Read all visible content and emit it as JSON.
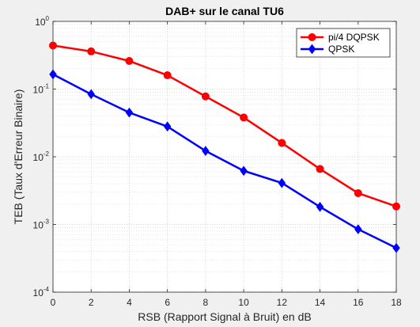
{
  "chart_data": {
    "type": "line",
    "title": "DAB+ sur le canal TU6",
    "xlabel": "RSB (Rapport Signal à Bruit) en dB",
    "ylabel": "TEB (Taux d'Erreur Binaire)",
    "xlim": [
      0,
      18
    ],
    "ylim": [
      0.0001,
      1
    ],
    "yscale": "log",
    "grid": true,
    "minor_grid": true,
    "legend_position": "top-right",
    "x": [
      0,
      2,
      4,
      6,
      8,
      10,
      12,
      14,
      16,
      18
    ],
    "x_ticks": [
      "0",
      "2",
      "4",
      "6",
      "8",
      "10",
      "12",
      "14",
      "16",
      "18"
    ],
    "y_ticks": [
      {
        "base": "10",
        "exp": "0",
        "value": 1
      },
      {
        "base": "10",
        "exp": "-1",
        "value": 0.1
      },
      {
        "base": "10",
        "exp": "-2",
        "value": 0.01
      },
      {
        "base": "10",
        "exp": "-3",
        "value": 0.001
      },
      {
        "base": "10",
        "exp": "-4",
        "value": 0.0001
      }
    ],
    "series": [
      {
        "name": "pi/4 DQPSK",
        "color": "#ff0000",
        "marker": "circle",
        "values": [
          0.44,
          0.36,
          0.26,
          0.16,
          0.078,
          0.038,
          0.016,
          0.0066,
          0.0029,
          0.00185
        ]
      },
      {
        "name": "QPSK",
        "color": "#0000ff",
        "marker": "diamond",
        "values": [
          0.165,
          0.084,
          0.045,
          0.028,
          0.0122,
          0.0062,
          0.0041,
          0.00182,
          0.00085,
          0.00045
        ]
      }
    ]
  }
}
